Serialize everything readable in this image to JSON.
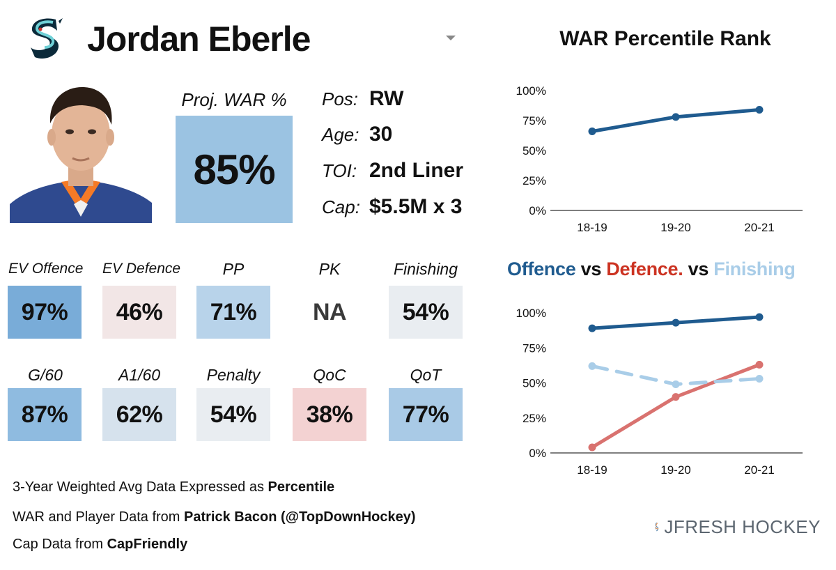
{
  "player": {
    "name": "Jordan Eberle",
    "proj_war_label": "Proj. WAR %",
    "proj_war_value": "85%",
    "proj_war_color": "#9bc3e2"
  },
  "info": [
    {
      "key": "Pos:",
      "value": "RW"
    },
    {
      "key": "Age:",
      "value": "30"
    },
    {
      "key": "TOI:",
      "value": "2nd Liner"
    },
    {
      "key": "Cap:",
      "value": "$5.5M x 3"
    }
  ],
  "metrics_row1": [
    {
      "label": "EV Offence",
      "value": "97%",
      "color": "#79acd8"
    },
    {
      "label": "EV Defence",
      "value": "46%",
      "color": "#f2e6e6"
    },
    {
      "label": "PP",
      "value": "71%",
      "color": "#b8d3ea"
    },
    {
      "label": "PK",
      "value": "NA",
      "color": "#ffffff"
    },
    {
      "label": "Finishing",
      "value": "54%",
      "color": "#e9edf1"
    }
  ],
  "metrics_row2": [
    {
      "label": "G/60",
      "value": "87%",
      "color": "#8fbbe0"
    },
    {
      "label": "A1/60",
      "value": "62%",
      "color": "#d6e2ed"
    },
    {
      "label": "Penalty",
      "value": "54%",
      "color": "#e9edf1"
    },
    {
      "label": "QoC",
      "value": "38%",
      "color": "#f3d2d2"
    },
    {
      "label": "QoT",
      "value": "77%",
      "color": "#a9cae6"
    }
  ],
  "footer": {
    "line1_text": "3-Year Weighted Avg Data Expressed as ",
    "line1_bold": "Percentile",
    "line2_text": "WAR and Player Data from ",
    "line2_bold": "Patrick Bacon (@TopDownHockey)",
    "line3_text": "Cap Data from ",
    "line3_bold": "CapFriendly"
  },
  "brand": {
    "text": "JFRESH HOCKEY"
  },
  "colors": {
    "offence": "#1f5b8f",
    "defence": "#d9726f",
    "defence_title": "#cc3322",
    "finishing": "#a9cde8",
    "axis": "#555555"
  },
  "chart_data": [
    {
      "type": "line",
      "title": "WAR Percentile Rank",
      "categories": [
        "18-19",
        "19-20",
        "20-21"
      ],
      "series": [
        {
          "values": [
            66,
            78,
            84
          ],
          "color": "#1f5b8f",
          "style": "solid"
        }
      ],
      "ylim": [
        0,
        100
      ],
      "yticks": [
        "0%",
        "25%",
        "50%",
        "75%",
        "100%"
      ],
      "grid": false
    },
    {
      "type": "line",
      "title_parts": [
        "Offence",
        " vs ",
        "Defence.",
        " vs ",
        "Finishing"
      ],
      "categories": [
        "18-19",
        "19-20",
        "20-21"
      ],
      "series": [
        {
          "name": "Offence",
          "values": [
            89,
            93,
            97
          ],
          "color": "#1f5b8f",
          "style": "solid"
        },
        {
          "name": "Defence.",
          "values": [
            4,
            40,
            63
          ],
          "color": "#d9726f",
          "style": "solid"
        },
        {
          "name": "Finishing",
          "values": [
            62,
            49,
            53
          ],
          "color": "#a9cde8",
          "style": "dashed"
        }
      ],
      "ylim": [
        0,
        100
      ],
      "yticks": [
        "0%",
        "25%",
        "50%",
        "75%",
        "100%"
      ],
      "grid": false
    }
  ]
}
